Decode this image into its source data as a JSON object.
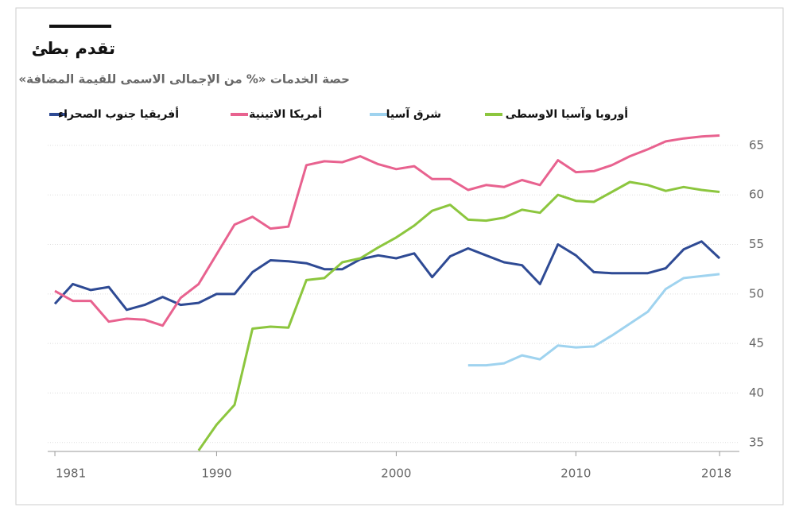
{
  "chart_data": {
    "type": "line",
    "title": "تقدم بطئ",
    "subtitle": "حصة الخدمات «% من الإجمالى الاسمى للقيمة المضافة»",
    "x": [
      1981,
      1982,
      1983,
      1984,
      1985,
      1986,
      1987,
      1988,
      1989,
      1990,
      1991,
      1992,
      1993,
      1994,
      1995,
      1996,
      1997,
      1998,
      1999,
      2000,
      2001,
      2002,
      2003,
      2004,
      2005,
      2006,
      2007,
      2008,
      2009,
      2010,
      2011,
      2012,
      2013,
      2014,
      2015,
      2016,
      2017,
      2018
    ],
    "series": [
      {
        "name": "أفريقيا جنوب الصحراء",
        "color": "#2e4a94",
        "values": [
          49,
          51,
          50.4,
          50.7,
          48.4,
          48.9,
          49.7,
          48.9,
          49.1,
          50,
          50,
          52.2,
          53.4,
          53.3,
          53.1,
          52.5,
          52.5,
          53.5,
          53.9,
          53.6,
          54.1,
          51.7,
          53.8,
          54.6,
          53.9,
          53.2,
          52.9,
          51,
          55,
          53.9,
          52.2,
          52.1,
          52.1,
          52.1,
          52.6,
          54.5,
          55.3,
          53.6
        ]
      },
      {
        "name": "أمريكا الاتينية",
        "color": "#e8628f",
        "values": [
          50.3,
          49.3,
          49.3,
          47.2,
          47.5,
          47.4,
          46.8,
          49.6,
          51,
          54,
          57,
          57.8,
          56.6,
          56.8,
          63,
          63.4,
          63.3,
          63.9,
          63.1,
          62.6,
          62.9,
          61.6,
          61.6,
          60.5,
          61,
          60.8,
          61.5,
          61,
          63.5,
          62.3,
          62.4,
          63,
          63.9,
          64.6,
          65.4,
          65.7,
          65.9,
          66
        ]
      },
      {
        "name": "شرق آسيا",
        "color": "#9fd3ef",
        "values": [
          null,
          null,
          null,
          null,
          null,
          null,
          null,
          null,
          null,
          null,
          null,
          null,
          null,
          null,
          null,
          null,
          null,
          null,
          null,
          null,
          null,
          null,
          null,
          42.8,
          42.8,
          43,
          43.8,
          43.4,
          44.8,
          44.6,
          44.7,
          45.8,
          47,
          48.2,
          50.5,
          51.6,
          51.8,
          52
        ]
      },
      {
        "name": "أوروبا وآسيا الاوسطى",
        "color": "#8cc63e",
        "values": [
          null,
          null,
          null,
          null,
          null,
          null,
          null,
          null,
          34.2,
          36.8,
          38.8,
          46.5,
          46.7,
          46.6,
          51.4,
          51.6,
          53.2,
          53.6,
          54.7,
          55.7,
          56.9,
          58.4,
          59,
          57.5,
          57.4,
          57.7,
          58.5,
          58.2,
          60,
          59.4,
          59.3,
          60.3,
          61.3,
          61,
          60.4,
          60.8,
          60.5,
          60.3
        ]
      }
    ],
    "xlim": [
      1980.6,
      2019.1
    ],
    "xticks": [
      1981,
      1990,
      2000,
      2010,
      2018
    ],
    "ylim": [
      34.1,
      67
    ],
    "yticks": [
      35,
      40,
      45,
      50,
      55,
      60,
      65
    ],
    "grid": true
  }
}
